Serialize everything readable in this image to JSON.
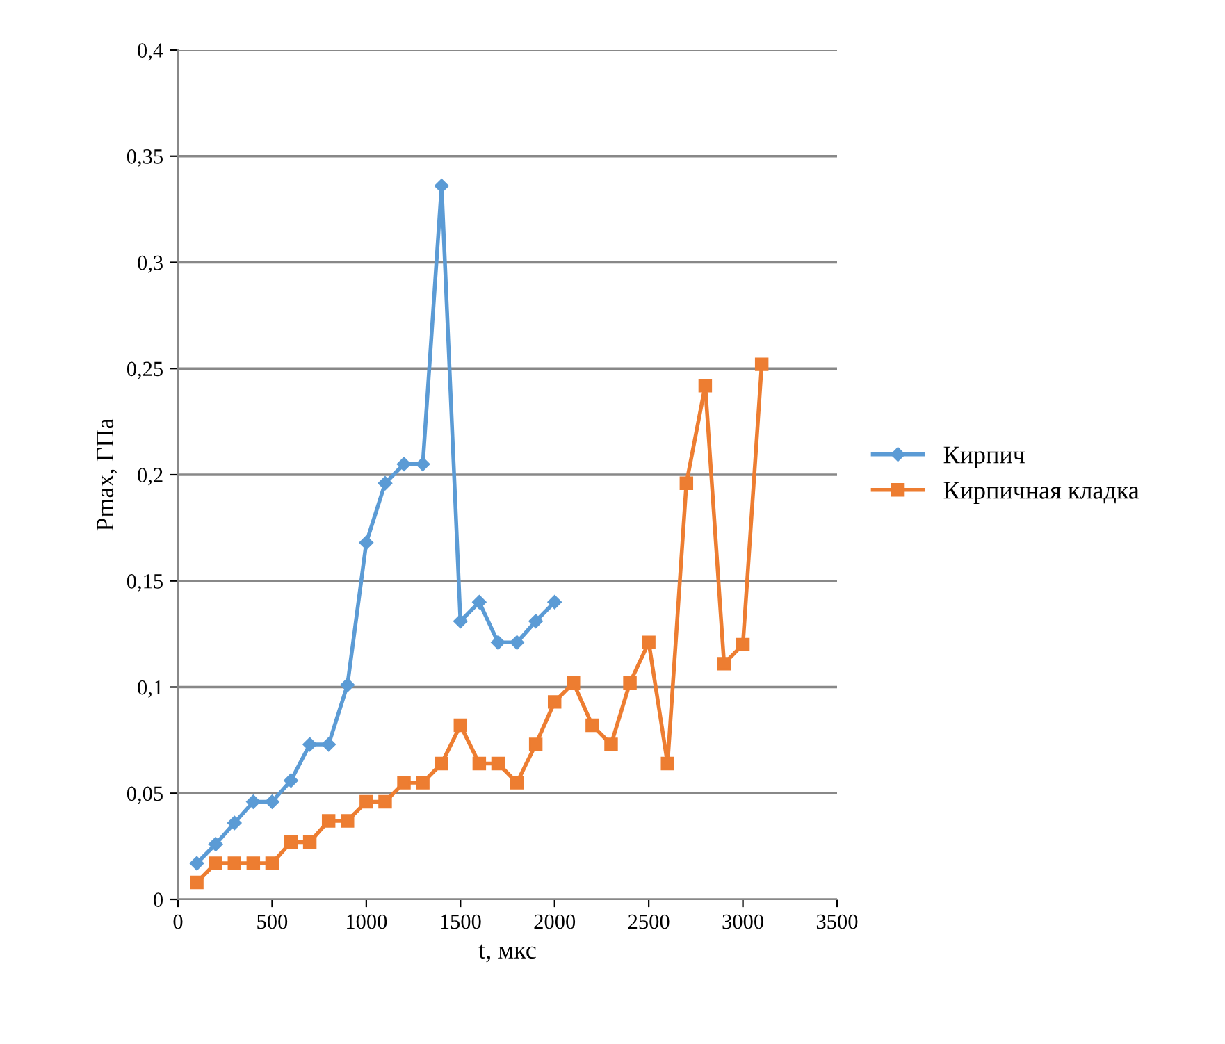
{
  "chart_data": {
    "type": "line",
    "xlabel": "t, мкс",
    "ylabel": "Pmax, ГПа",
    "xlim": [
      0,
      3500
    ],
    "xticks": [
      0,
      500,
      1000,
      1500,
      2000,
      2500,
      3000,
      3500
    ],
    "ylim": [
      0,
      0.4
    ],
    "yticks": [
      0,
      {
        "value": 0.05,
        "label": "0,05"
      },
      {
        "value": 0.1,
        "label": "0,1"
      },
      {
        "value": 0.15,
        "label": "0,15"
      },
      {
        "value": 0.2,
        "label": "0,2"
      },
      {
        "value": 0.25,
        "label": "0,25"
      },
      {
        "value": 0.3,
        "label": "0,3"
      },
      {
        "value": 0.35,
        "label": "0,35"
      },
      {
        "value": 0.4,
        "label": "0,4"
      }
    ],
    "grid": "y",
    "legend": "right",
    "line_style": "solid",
    "series": [
      {
        "name": "Кирпич",
        "color": "#5b9bd5",
        "marker": "diamond",
        "x": [
          100,
          200,
          300,
          400,
          500,
          600,
          700,
          800,
          900,
          1000,
          1100,
          1200,
          1300,
          1400,
          1500,
          1600,
          1700,
          1800,
          1900,
          2000
        ],
        "values": [
          0.017,
          0.026,
          0.036,
          0.046,
          0.046,
          0.056,
          0.073,
          0.073,
          0.101,
          0.168,
          0.196,
          0.205,
          0.205,
          0.336,
          0.131,
          0.14,
          0.121,
          0.121,
          0.131,
          0.14
        ]
      },
      {
        "name": "Кирпичная кладка",
        "color": "#ed7d31",
        "marker": "square",
        "x": [
          100,
          200,
          300,
          400,
          500,
          600,
          700,
          800,
          900,
          1000,
          1100,
          1200,
          1300,
          1400,
          1500,
          1600,
          1700,
          1800,
          1900,
          2000,
          2100,
          2200,
          2300,
          2400,
          2500,
          2600,
          2700,
          2800,
          2900,
          3000,
          3100
        ],
        "values": [
          0.008,
          0.017,
          0.017,
          0.017,
          0.017,
          0.027,
          0.027,
          0.037,
          0.037,
          0.046,
          0.046,
          0.055,
          0.055,
          0.064,
          0.082,
          0.064,
          0.064,
          0.055,
          0.073,
          0.093,
          0.102,
          0.082,
          0.073,
          0.102,
          0.121,
          0.064,
          0.196,
          0.242,
          0.111,
          0.12,
          0.252
        ]
      }
    ]
  }
}
